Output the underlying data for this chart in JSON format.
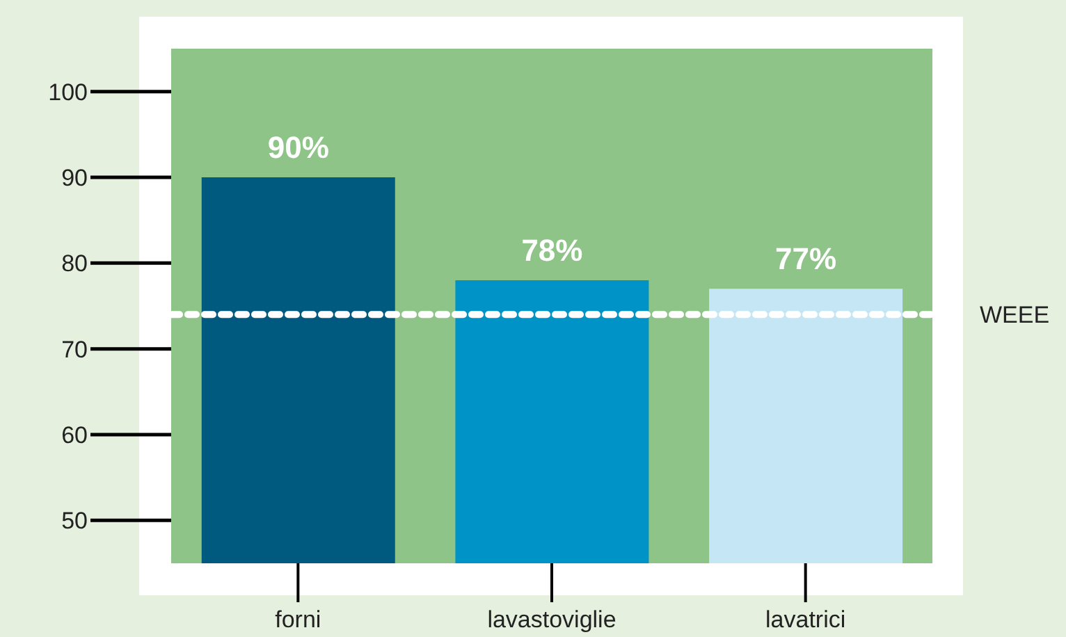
{
  "chart_data": {
    "type": "bar",
    "categories": [
      "forni",
      "lavastoviglie",
      "lavatrici"
    ],
    "values": [
      90,
      78,
      77
    ],
    "colors": [
      "#005a80",
      "#0093c8",
      "#c5e6f5"
    ],
    "value_labels": [
      "90%",
      "78%",
      "77%"
    ],
    "ylim": [
      45,
      105
    ],
    "yticks": [
      50,
      60,
      70,
      80,
      90,
      100
    ],
    "grid": false,
    "ref_lines": [
      {
        "axis": "y",
        "value": 74,
        "label": "WEEE",
        "color": "#ffffff",
        "line_style": "dashed"
      }
    ]
  }
}
